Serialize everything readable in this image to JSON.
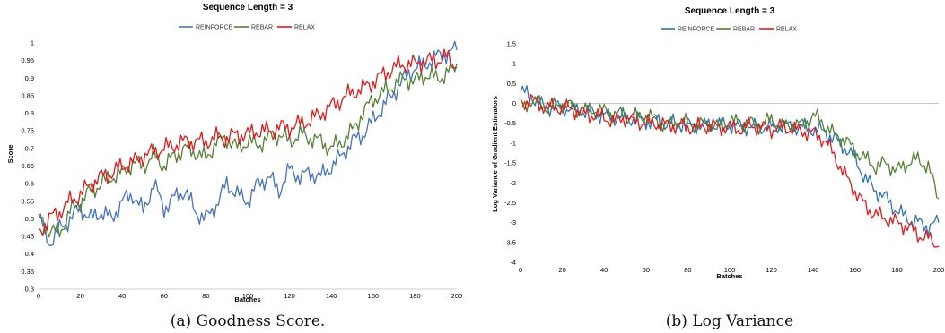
{
  "figures": [
    {
      "caption": "(a) Goodness Score.",
      "chart_data": {
        "type": "line",
        "title": "Sequence Length = 3",
        "xlabel": "Batches",
        "ylabel": "Score",
        "xlim": [
          0,
          200
        ],
        "ylim": [
          0.3,
          1
        ],
        "x_ticks": [
          0,
          20,
          40,
          60,
          80,
          100,
          120,
          140,
          160,
          180,
          200
        ],
        "y_ticks": [
          0.3,
          0.35,
          0.4,
          0.45,
          0.5,
          0.55,
          0.6,
          0.65,
          0.7,
          0.75,
          0.8,
          0.85,
          0.9,
          0.95,
          1
        ],
        "y_tick_labels": [
          "0.3",
          "0.35",
          "0.4",
          "0.45",
          "0.5",
          "0.55",
          "0.6",
          "0.65",
          "0.7",
          "0.75",
          "0.8",
          "0.85",
          "0.9",
          "0.95",
          "1"
        ],
        "grid": false,
        "legend_position": "top",
        "x": [
          0,
          5,
          10,
          15,
          20,
          25,
          30,
          35,
          40,
          45,
          50,
          55,
          60,
          65,
          70,
          75,
          80,
          85,
          90,
          95,
          100,
          105,
          110,
          115,
          120,
          125,
          130,
          135,
          140,
          145,
          150,
          155,
          160,
          165,
          170,
          175,
          180,
          185,
          190,
          195,
          200
        ],
        "series": [
          {
            "name": "REINFORCE",
            "color": "#4472c4",
            "values": [
              0.51,
              0.43,
              0.47,
              0.5,
              0.53,
              0.5,
              0.52,
              0.5,
              0.55,
              0.57,
              0.52,
              0.6,
              0.53,
              0.56,
              0.58,
              0.52,
              0.5,
              0.54,
              0.6,
              0.57,
              0.55,
              0.6,
              0.62,
              0.58,
              0.64,
              0.62,
              0.63,
              0.62,
              0.65,
              0.68,
              0.72,
              0.74,
              0.78,
              0.82,
              0.86,
              0.9,
              0.93,
              0.94,
              0.96,
              0.97,
              0.98
            ]
          },
          {
            "name": "REBAR",
            "color": "#548235",
            "values": [
              0.5,
              0.47,
              0.46,
              0.52,
              0.55,
              0.58,
              0.6,
              0.62,
              0.63,
              0.66,
              0.65,
              0.68,
              0.65,
              0.68,
              0.7,
              0.69,
              0.67,
              0.72,
              0.73,
              0.7,
              0.72,
              0.71,
              0.73,
              0.74,
              0.72,
              0.74,
              0.73,
              0.72,
              0.7,
              0.72,
              0.75,
              0.8,
              0.84,
              0.86,
              0.88,
              0.9,
              0.89,
              0.91,
              0.9,
              0.91,
              0.94
            ]
          },
          {
            "name": "RELAX",
            "color": "#e31a1c",
            "values": [
              0.46,
              0.5,
              0.52,
              0.55,
              0.57,
              0.6,
              0.62,
              0.63,
              0.65,
              0.66,
              0.68,
              0.69,
              0.7,
              0.71,
              0.72,
              0.72,
              0.72,
              0.73,
              0.73,
              0.74,
              0.74,
              0.75,
              0.75,
              0.76,
              0.76,
              0.77,
              0.78,
              0.8,
              0.82,
              0.84,
              0.86,
              0.87,
              0.89,
              0.91,
              0.93,
              0.94,
              0.94,
              0.95,
              0.95,
              0.96,
              0.93
            ]
          }
        ]
      }
    },
    {
      "caption": "(b) Log Variance",
      "chart_data": {
        "type": "line",
        "title": "Sequence Length = 3",
        "xlabel": "Batches",
        "ylabel": "Log Variance of Gradient Estimators",
        "xlim": [
          0,
          200
        ],
        "ylim": [
          -4,
          1.5
        ],
        "x_ticks": [
          0,
          20,
          40,
          60,
          80,
          100,
          120,
          140,
          160,
          180,
          200
        ],
        "y_ticks": [
          -4,
          -3.5,
          -3,
          -2.5,
          -2,
          -1.5,
          -1,
          -0.5,
          0,
          0.5,
          1,
          1.5
        ],
        "y_tick_labels": [
          "-4",
          "-3.5",
          "-3",
          "-2.5",
          "-2",
          "-1.5",
          "-1",
          "-0.5",
          "0",
          "0.5",
          "1",
          "1.5"
        ],
        "x_tick_labels_note": "last tick label clipped at right edge",
        "grid": false,
        "reference_line_y": 0,
        "legend_position": "top",
        "x": [
          0,
          5,
          10,
          15,
          20,
          25,
          30,
          35,
          40,
          45,
          50,
          55,
          60,
          65,
          70,
          75,
          80,
          85,
          90,
          95,
          100,
          105,
          110,
          115,
          120,
          125,
          130,
          135,
          140,
          145,
          150,
          155,
          160,
          165,
          170,
          175,
          180,
          185,
          190,
          195,
          200
        ],
        "series": [
          {
            "name": "REINFORCE",
            "color": "#2e75b6",
            "values": [
              0.3,
              0.2,
              -0.05,
              -0.1,
              -0.1,
              -0.15,
              -0.2,
              -0.25,
              -0.3,
              -0.35,
              -0.35,
              -0.4,
              -0.45,
              -0.45,
              -0.5,
              -0.5,
              -0.55,
              -0.55,
              -0.55,
              -0.55,
              -0.55,
              -0.55,
              -0.6,
              -0.6,
              -0.6,
              -0.55,
              -0.6,
              -0.6,
              -0.65,
              -0.7,
              -0.9,
              -1.1,
              -1.4,
              -1.9,
              -2.2,
              -2.4,
              -2.7,
              -2.9,
              -3.0,
              -3.1,
              -3.0
            ]
          },
          {
            "name": "REBAR",
            "color": "#548235",
            "values": [
              -0.2,
              0.1,
              -0.05,
              -0.1,
              0.0,
              -0.1,
              -0.2,
              -0.15,
              -0.2,
              -0.25,
              -0.3,
              -0.35,
              -0.3,
              -0.4,
              -0.6,
              -0.45,
              -0.5,
              -0.55,
              -0.5,
              -0.6,
              -0.45,
              -0.5,
              -0.5,
              -0.55,
              -0.4,
              -0.6,
              -0.5,
              -0.55,
              -0.3,
              -0.5,
              -0.8,
              -0.9,
              -1.2,
              -1.4,
              -1.6,
              -1.5,
              -1.7,
              -1.5,
              -1.4,
              -1.6,
              -2.4
            ]
          },
          {
            "name": "RELAX",
            "color": "#e31a1c",
            "values": [
              0.0,
              0.1,
              -0.05,
              -0.1,
              -0.1,
              -0.15,
              -0.25,
              -0.3,
              -0.35,
              -0.45,
              -0.35,
              -0.45,
              -0.5,
              -0.5,
              -0.55,
              -0.55,
              -0.6,
              -0.6,
              -0.55,
              -0.6,
              -0.6,
              -0.65,
              -0.55,
              -0.6,
              -0.65,
              -0.6,
              -0.65,
              -0.7,
              -0.75,
              -0.9,
              -1.3,
              -1.8,
              -2.2,
              -2.6,
              -2.8,
              -2.9,
              -3.0,
              -3.1,
              -3.3,
              -3.4,
              -3.6
            ]
          }
        ]
      }
    }
  ]
}
